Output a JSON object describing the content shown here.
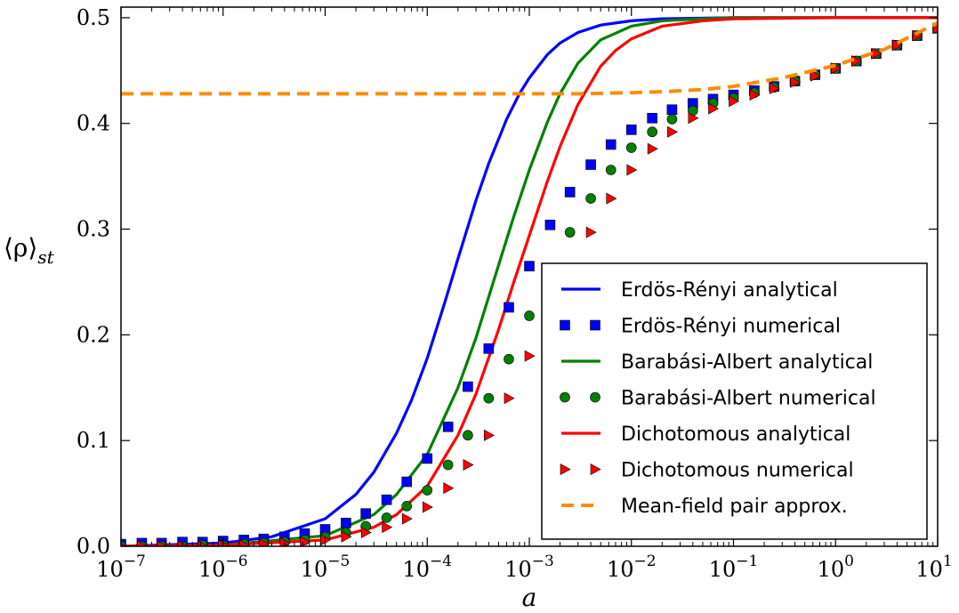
{
  "chart_data": {
    "type": "line",
    "title": "",
    "xlabel": "a",
    "ylabel": "⟨ρ⟩",
    "ylabel_sub": "st",
    "xscale": "log",
    "xlim": [
      1e-07,
      10
    ],
    "ylim": [
      0.0,
      0.51
    ],
    "grid": false,
    "legend_placement": "lower-right",
    "x_ticks": [
      {
        "value": 1e-07,
        "base": "10",
        "exp": "−7"
      },
      {
        "value": 1e-06,
        "base": "10",
        "exp": "−6"
      },
      {
        "value": 1e-05,
        "base": "10",
        "exp": "−5"
      },
      {
        "value": 0.0001,
        "base": "10",
        "exp": "−4"
      },
      {
        "value": 0.001,
        "base": "10",
        "exp": "−3"
      },
      {
        "value": 0.01,
        "base": "10",
        "exp": "−2"
      },
      {
        "value": 0.1,
        "base": "10",
        "exp": "−1"
      },
      {
        "value": 1,
        "base": "10",
        "exp": "0"
      },
      {
        "value": 10,
        "base": "10",
        "exp": "1"
      }
    ],
    "y_ticks": [
      {
        "value": 0.0,
        "label": "0.0"
      },
      {
        "value": 0.1,
        "label": "0.1"
      },
      {
        "value": 0.2,
        "label": "0.2"
      },
      {
        "value": 0.3,
        "label": "0.3"
      },
      {
        "value": 0.4,
        "label": "0.4"
      },
      {
        "value": 0.5,
        "label": "0.5"
      }
    ],
    "series": [
      {
        "name": "Erdös-Rényi analytical",
        "kind": "line",
        "color": "#0000ff",
        "dash": "solid",
        "x": [
          1e-07,
          1e-06,
          3e-06,
          1e-05,
          2e-05,
          3e-05,
          5e-05,
          7e-05,
          0.0001,
          0.00015,
          0.0002,
          0.0003,
          0.0004,
          0.0006,
          0.0008,
          0.001,
          0.0015,
          0.002,
          0.003,
          0.005,
          0.01,
          0.02,
          0.1,
          1,
          10
        ],
        "y": [
          0.0,
          0.003,
          0.009,
          0.026,
          0.049,
          0.07,
          0.107,
          0.138,
          0.178,
          0.232,
          0.272,
          0.327,
          0.362,
          0.404,
          0.428,
          0.443,
          0.465,
          0.476,
          0.486,
          0.493,
          0.497,
          0.499,
          0.5,
          0.5,
          0.5
        ]
      },
      {
        "name": "Erdös-Rényi numerical",
        "kind": "marker",
        "marker": "square",
        "color": "#0000ff",
        "x": [
          1e-07,
          1.6e-07,
          2.5e-07,
          4e-07,
          6.3e-07,
          1e-06,
          1.6e-06,
          2.5e-06,
          4e-06,
          6.3e-06,
          1e-05,
          1.6e-05,
          2.5e-05,
          4e-05,
          6.3e-05,
          0.0001,
          0.00016,
          0.00025,
          0.0004,
          0.00063,
          0.001,
          0.0016,
          0.0025,
          0.004,
          0.0063,
          0.01,
          0.016,
          0.025,
          0.04,
          0.063,
          0.1,
          0.16,
          0.25,
          0.4,
          0.63,
          1,
          1.6,
          2.5,
          4,
          6.3,
          10
        ],
        "y": [
          0.002,
          0.003,
          0.003,
          0.004,
          0.004,
          0.005,
          0.006,
          0.007,
          0.009,
          0.012,
          0.016,
          0.022,
          0.031,
          0.044,
          0.061,
          0.083,
          0.113,
          0.151,
          0.187,
          0.226,
          0.265,
          0.304,
          0.335,
          0.361,
          0.38,
          0.394,
          0.405,
          0.413,
          0.419,
          0.423,
          0.427,
          0.431,
          0.435,
          0.44,
          0.446,
          0.452,
          0.459,
          0.466,
          0.474,
          0.483,
          0.49
        ]
      },
      {
        "name": "Barabási-Albert analytical",
        "kind": "line",
        "color": "#008000",
        "dash": "solid",
        "x": [
          1e-07,
          1e-06,
          1e-05,
          3e-05,
          5e-05,
          0.0001,
          0.0002,
          0.0003,
          0.0005,
          0.0007,
          0.001,
          0.0015,
          0.002,
          0.003,
          0.005,
          0.01,
          0.02,
          0.05,
          0.1,
          1,
          10
        ],
        "y": [
          0.0,
          0.001,
          0.01,
          0.03,
          0.049,
          0.087,
          0.15,
          0.197,
          0.266,
          0.311,
          0.356,
          0.401,
          0.428,
          0.457,
          0.479,
          0.492,
          0.497,
          0.499,
          0.5,
          0.5,
          0.5
        ]
      },
      {
        "name": "Barabási-Albert numerical",
        "kind": "marker",
        "marker": "circle",
        "color": "#008000",
        "x": [
          1e-07,
          1.6e-07,
          2.5e-07,
          4e-07,
          6.3e-07,
          1e-06,
          1.6e-06,
          2.5e-06,
          4e-06,
          6.3e-06,
          1e-05,
          1.6e-05,
          2.5e-05,
          4e-05,
          6.3e-05,
          0.0001,
          0.00016,
          0.00025,
          0.0004,
          0.00063,
          0.001,
          0.0016,
          0.0025,
          0.004,
          0.0063,
          0.01,
          0.016,
          0.025,
          0.04,
          0.063,
          0.1,
          0.16,
          0.25,
          0.4,
          0.63,
          1,
          1.6,
          2.5,
          4,
          6.3,
          10
        ],
        "y": [
          0.0,
          0.0,
          0.0,
          0.0,
          0.001,
          0.001,
          0.002,
          0.003,
          0.004,
          0.006,
          0.009,
          0.013,
          0.019,
          0.027,
          0.038,
          0.053,
          0.077,
          0.105,
          0.14,
          0.177,
          0.218,
          0.258,
          0.297,
          0.329,
          0.356,
          0.377,
          0.392,
          0.404,
          0.412,
          0.419,
          0.424,
          0.429,
          0.434,
          0.44,
          0.446,
          0.452,
          0.459,
          0.466,
          0.474,
          0.483,
          0.49
        ]
      },
      {
        "name": "Dichotomous analytical",
        "kind": "line",
        "color": "#ff0000",
        "dash": "solid",
        "x": [
          1e-07,
          1e-06,
          1e-05,
          3e-05,
          5e-05,
          0.0001,
          0.0002,
          0.0003,
          0.0005,
          0.0007,
          0.001,
          0.0015,
          0.002,
          0.003,
          0.005,
          0.007,
          0.01,
          0.02,
          0.05,
          0.1,
          1,
          10
        ],
        "y": [
          0.0,
          0.001,
          0.006,
          0.018,
          0.03,
          0.057,
          0.105,
          0.144,
          0.205,
          0.249,
          0.294,
          0.345,
          0.378,
          0.418,
          0.454,
          0.469,
          0.48,
          0.492,
          0.497,
          0.499,
          0.5,
          0.5
        ]
      },
      {
        "name": "Dichotomous numerical",
        "kind": "marker",
        "marker": "triangle-right",
        "color": "#ff0000",
        "x": [
          1e-07,
          1.6e-07,
          2.5e-07,
          4e-07,
          6.3e-07,
          1e-06,
          1.6e-06,
          2.5e-06,
          4e-06,
          6.3e-06,
          1e-05,
          1.6e-05,
          2.5e-05,
          4e-05,
          6.3e-05,
          0.0001,
          0.00016,
          0.00025,
          0.0004,
          0.00063,
          0.001,
          0.0016,
          0.0025,
          0.004,
          0.0063,
          0.01,
          0.016,
          0.025,
          0.04,
          0.063,
          0.1,
          0.16,
          0.25,
          0.4,
          0.63,
          1,
          1.6,
          2.5,
          4,
          6.3,
          10
        ],
        "y": [
          0.0,
          0.0,
          0.0,
          0.0,
          0.0,
          0.001,
          0.001,
          0.002,
          0.003,
          0.004,
          0.006,
          0.009,
          0.013,
          0.018,
          0.026,
          0.037,
          0.055,
          0.077,
          0.105,
          0.14,
          0.18,
          0.219,
          0.259,
          0.297,
          0.329,
          0.356,
          0.376,
          0.392,
          0.405,
          0.414,
          0.421,
          0.427,
          0.433,
          0.439,
          0.445,
          0.452,
          0.459,
          0.466,
          0.474,
          0.483,
          0.49
        ]
      },
      {
        "name": "Mean-field pair approx.",
        "kind": "line",
        "color": "#ff8c00",
        "dash": "dashed",
        "x": [
          1e-07,
          0.0001,
          0.001,
          0.003,
          0.01,
          0.02,
          0.05,
          0.1,
          0.3,
          1,
          3,
          10
        ],
        "y": [
          0.428,
          0.428,
          0.428,
          0.428,
          0.429,
          0.43,
          0.432,
          0.435,
          0.443,
          0.455,
          0.47,
          0.495
        ]
      }
    ]
  }
}
